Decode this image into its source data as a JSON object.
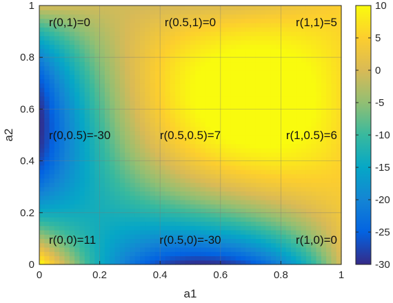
{
  "chart_data": {
    "type": "heatmap",
    "title": "",
    "xlabel": "a1",
    "ylabel": "a2",
    "xlim": [
      0,
      1
    ],
    "ylim": [
      0,
      1
    ],
    "x_ticks": [
      "0",
      "0.2",
      "0.4",
      "0.6",
      "0.8",
      "1"
    ],
    "y_ticks": [
      "0",
      "0.2",
      "0.4",
      "0.6",
      "0.8",
      "1"
    ],
    "grid": true,
    "colorbar": {
      "range": [
        -30,
        10
      ],
      "ticks": [
        "10",
        "5",
        "0",
        "-5",
        "-10",
        "-15",
        "-20",
        "-25",
        "-30"
      ],
      "colormap": "parula",
      "placement": "right"
    },
    "points": [
      {
        "a1": 0,
        "a2": 1,
        "r": 0,
        "label": "r(0,1)=0"
      },
      {
        "a1": 0.5,
        "a2": 1,
        "r": 0,
        "label": "r(0.5,1)=0"
      },
      {
        "a1": 1,
        "a2": 1,
        "r": 5,
        "label": "r(1,1)=5"
      },
      {
        "a1": 0,
        "a2": 0.5,
        "r": -30,
        "label": "r(0,0.5)=-30"
      },
      {
        "a1": 0.5,
        "a2": 0.5,
        "r": 7,
        "label": "r(0.5,0.5)=7"
      },
      {
        "a1": 1,
        "a2": 0.5,
        "r": 6,
        "label": "r(1,0.5)=6"
      },
      {
        "a1": 0,
        "a2": 0,
        "r": 11,
        "label": "r(0,0)=11"
      },
      {
        "a1": 0.5,
        "a2": 0,
        "r": -30,
        "label": "r(0.5,0)=-30"
      },
      {
        "a1": 1,
        "a2": 0,
        "r": 0,
        "label": "r(1,0)=0"
      }
    ]
  }
}
